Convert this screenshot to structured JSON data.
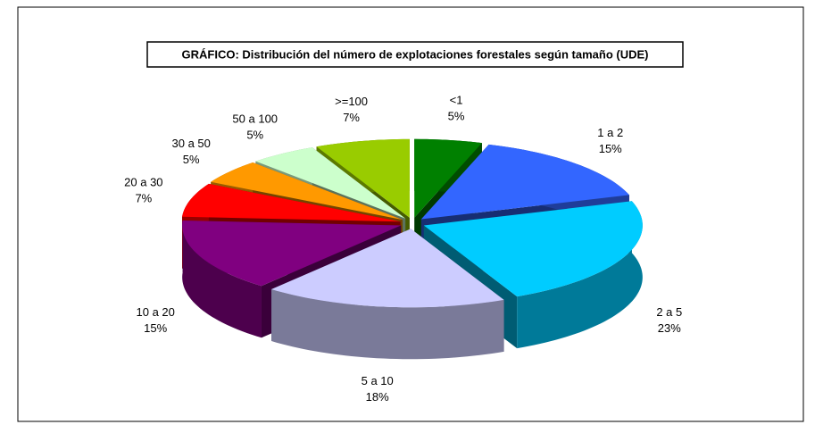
{
  "chart_data": {
    "type": "pie3d",
    "title": "GRÁFICO: Distribución del número de explotaciones forestales según tamaño (UDE)",
    "categories": [
      "<1",
      "1 a 2",
      "2 a 5",
      "5 a 10",
      "10 a 20",
      "20 a 30",
      "30 a 50",
      "50 a 100",
      ">=100"
    ],
    "values": [
      5,
      15,
      23,
      18,
      15,
      7,
      5,
      5,
      7
    ],
    "value_labels": [
      "5%",
      "15%",
      "23%",
      "18%",
      "15%",
      "7%",
      "5%",
      "5%",
      "7%"
    ],
    "colors": [
      "#008000",
      "#3366ff",
      "#00ccff",
      "#ccccff",
      "#800080",
      "#ff0000",
      "#ff9900",
      "#ccffcc",
      "#99cc00"
    ]
  }
}
